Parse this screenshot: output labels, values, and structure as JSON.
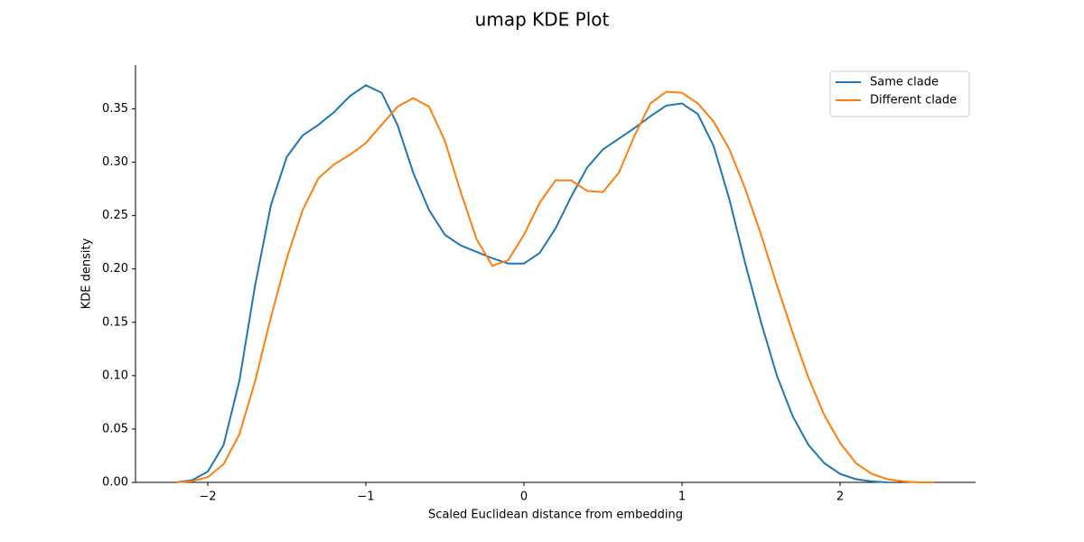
{
  "chart_data": {
    "type": "line",
    "title": "umap KDE Plot",
    "x_label": "Scaled Euclidean distance from embedding",
    "y_label": "KDE density",
    "xlim": [
      -2.457,
      2.857
    ],
    "ylim": [
      0,
      0.391
    ],
    "xticks": [
      {
        "value": -2,
        "label": "−2"
      },
      {
        "value": -1,
        "label": "−1"
      },
      0,
      1,
      2
    ],
    "yticks": [
      {
        "value": 0,
        "label": "0.00"
      },
      {
        "value": 0.05,
        "label": "0.05"
      },
      {
        "value": 0.1,
        "label": "0.10"
      },
      {
        "value": 0.15,
        "label": "0.15"
      },
      {
        "value": 0.2,
        "label": "0.20"
      },
      {
        "value": 0.25,
        "label": "0.25"
      },
      {
        "value": 0.3,
        "label": "0.30"
      },
      {
        "value": 0.35,
        "label": "0.35"
      }
    ],
    "legend": "upper right",
    "grid": false,
    "series": [
      {
        "name": "Same clade",
        "color": "#1f77b4",
        "x": [
          -2.2,
          -2.1,
          -2.0,
          -1.9,
          -1.8,
          -1.7,
          -1.6,
          -1.5,
          -1.4,
          -1.3,
          -1.2,
          -1.1,
          -1.0,
          -0.9,
          -0.8,
          -0.7,
          -0.6,
          -0.5,
          -0.4,
          -0.3,
          -0.2,
          -0.1,
          0.0,
          0.1,
          0.2,
          0.3,
          0.4,
          0.5,
          0.6,
          0.7,
          0.8,
          0.9,
          1.0,
          1.1,
          1.2,
          1.3,
          1.4,
          1.5,
          1.6,
          1.7,
          1.8,
          1.9,
          2.0,
          2.1,
          2.2,
          2.3
        ],
        "values": [
          0.0,
          0.002,
          0.01,
          0.035,
          0.095,
          0.185,
          0.26,
          0.305,
          0.325,
          0.335,
          0.347,
          0.362,
          0.372,
          0.365,
          0.335,
          0.29,
          0.255,
          0.232,
          0.222,
          0.216,
          0.21,
          0.205,
          0.205,
          0.215,
          0.238,
          0.268,
          0.295,
          0.312,
          0.322,
          0.332,
          0.343,
          0.353,
          0.355,
          0.345,
          0.315,
          0.265,
          0.205,
          0.15,
          0.1,
          0.062,
          0.035,
          0.018,
          0.008,
          0.003,
          0.001,
          0.0
        ]
      },
      {
        "name": "Different clade",
        "color": "#ff7f0e",
        "x": [
          -2.2,
          -2.1,
          -2.0,
          -1.9,
          -1.8,
          -1.7,
          -1.6,
          -1.5,
          -1.4,
          -1.3,
          -1.2,
          -1.1,
          -1.0,
          -0.9,
          -0.8,
          -0.7,
          -0.6,
          -0.5,
          -0.4,
          -0.3,
          -0.2,
          -0.1,
          0.0,
          0.1,
          0.2,
          0.3,
          0.4,
          0.5,
          0.6,
          0.7,
          0.8,
          0.9,
          1.0,
          1.1,
          1.2,
          1.3,
          1.4,
          1.5,
          1.6,
          1.7,
          1.8,
          1.9,
          2.0,
          2.1,
          2.2,
          2.3,
          2.4,
          2.5,
          2.6
        ],
        "values": [
          0.0,
          0.001,
          0.005,
          0.017,
          0.045,
          0.095,
          0.155,
          0.21,
          0.255,
          0.285,
          0.298,
          0.307,
          0.318,
          0.335,
          0.352,
          0.36,
          0.352,
          0.32,
          0.272,
          0.228,
          0.203,
          0.208,
          0.232,
          0.262,
          0.283,
          0.283,
          0.273,
          0.272,
          0.29,
          0.325,
          0.355,
          0.366,
          0.365,
          0.355,
          0.338,
          0.312,
          0.275,
          0.232,
          0.185,
          0.14,
          0.098,
          0.063,
          0.037,
          0.018,
          0.008,
          0.003,
          0.001,
          0.0,
          0.0
        ]
      }
    ]
  }
}
